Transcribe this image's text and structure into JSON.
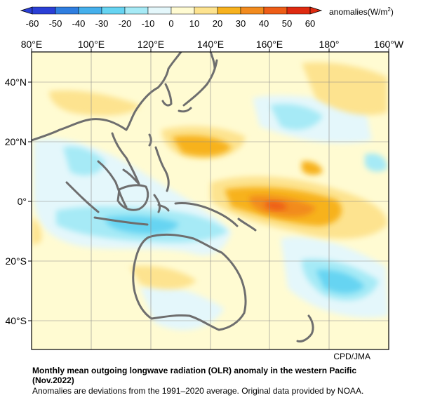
{
  "colorbar": {
    "labels": [
      "-60",
      "-50",
      "-40",
      "-30",
      "-20",
      "-10",
      "0",
      "10",
      "20",
      "30",
      "40",
      "50",
      "60"
    ],
    "colors": [
      "#2a3fd6",
      "#2f7ee0",
      "#45b0ec",
      "#66d4f2",
      "#a6eaf6",
      "#e4f7fb",
      "#fffbd2",
      "#fde38f",
      "#f7b21f",
      "#f28b1e",
      "#ee5d17",
      "#df2a10"
    ],
    "unit_label": "anomalies(W/m",
    "unit_exp": "2",
    "unit_close": ")"
  },
  "map": {
    "lon_labels": [
      "80°E",
      "100°E",
      "120°E",
      "140°E",
      "160°E",
      "180°",
      "160°W"
    ],
    "lat_labels": [
      "40°N",
      "20°N",
      "0°",
      "20°S",
      "40°S"
    ],
    "credit": "CPD/JMA",
    "coastline_color": "#6e6e6e",
    "grid_color": "#8a8a8a"
  },
  "caption": {
    "title": "Monthly mean outgoing longwave radiation (OLR) anomaly in the western Pacific",
    "date": "(Nov.2022)",
    "note": "Anomalies are deviations from the 1991–2020 average. Original data provided by NOAA."
  }
}
